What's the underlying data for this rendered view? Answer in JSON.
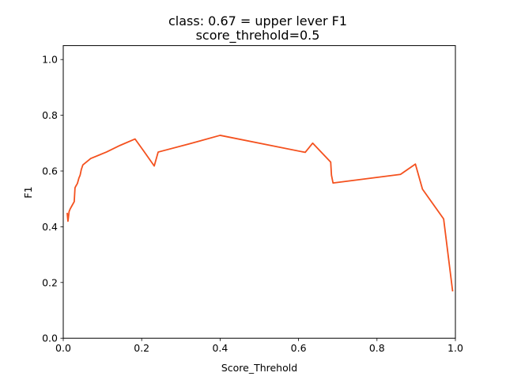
{
  "chart_data": {
    "type": "line",
    "title": "class: 0.67 = upper lever F1",
    "subtitle": "score_threhold=0.5",
    "xlabel": "Score_Threhold",
    "ylabel": "F1",
    "xlim": [
      0.0,
      1.0
    ],
    "ylim": [
      0.0,
      1.05
    ],
    "xticks": [
      "0.0",
      "0.2",
      "0.4",
      "0.6",
      "0.8",
      "1.0"
    ],
    "yticks": [
      "0.0",
      "0.2",
      "0.4",
      "0.6",
      "0.8",
      "1.0"
    ],
    "grid": false,
    "series": [
      {
        "color": "#f4511e",
        "x": [
          0.01,
          0.012,
          0.015,
          0.018,
          0.022,
          0.026,
          0.028,
          0.03,
          0.033,
          0.036,
          0.04,
          0.043,
          0.046,
          0.05,
          0.07,
          0.11,
          0.145,
          0.183,
          0.205,
          0.232,
          0.242,
          0.32,
          0.4,
          0.617,
          0.636,
          0.682,
          0.684,
          0.688,
          0.86,
          0.898,
          0.916,
          0.97,
          0.993
        ],
        "y": [
          0.45,
          0.42,
          0.455,
          0.465,
          0.475,
          0.485,
          0.49,
          0.54,
          0.548,
          0.555,
          0.575,
          0.585,
          0.605,
          0.622,
          0.645,
          0.668,
          0.692,
          0.715,
          0.672,
          0.618,
          0.668,
          0.697,
          0.728,
          0.667,
          0.7,
          0.632,
          0.585,
          0.557,
          0.588,
          0.625,
          0.535,
          0.428,
          0.168
        ]
      }
    ]
  }
}
